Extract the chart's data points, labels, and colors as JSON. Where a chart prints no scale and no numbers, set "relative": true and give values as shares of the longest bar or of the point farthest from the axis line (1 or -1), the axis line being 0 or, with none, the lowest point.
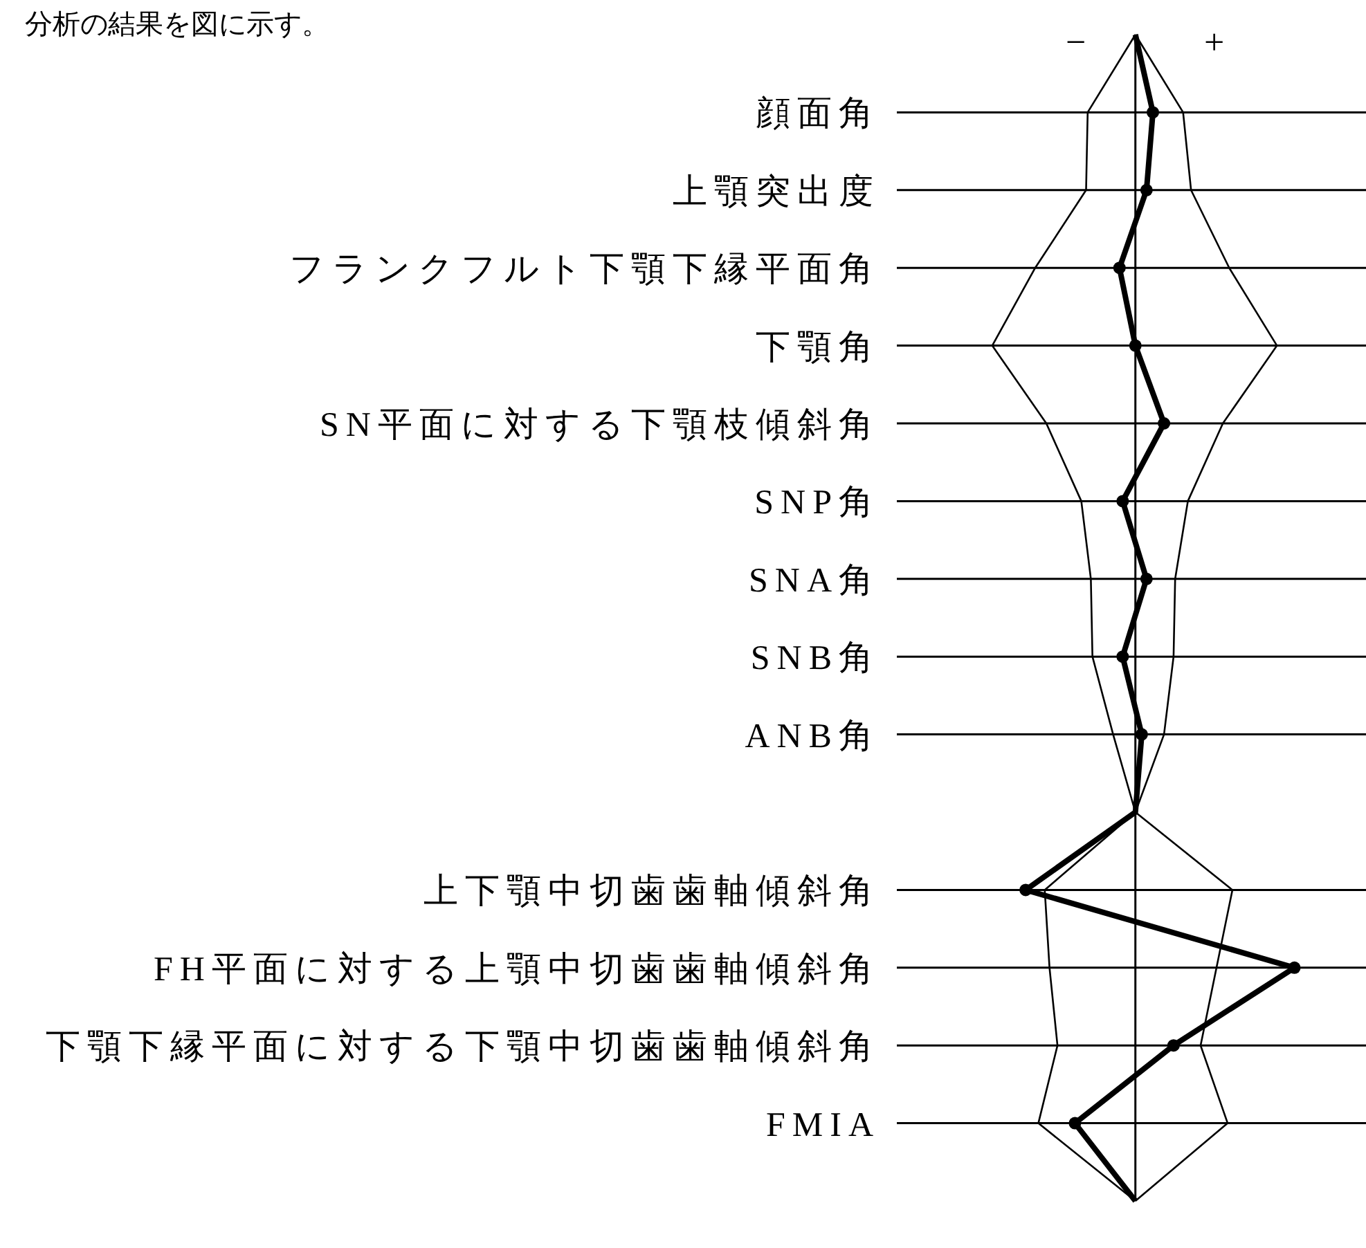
{
  "chart_data": {
    "type": "line",
    "orientation": "horizontal",
    "relative": true,
    "grid": "y",
    "legend": false,
    "annotations": [
      "分析の結果を図に示す。",
      "−",
      "+"
    ],
    "categories": [
      null,
      "顔面角",
      "上顎突出度",
      "フランクフルト下顎下縁平面角",
      "下顎角",
      "SN平面に対する下顎枝傾斜角",
      "SNP角",
      "SNA角",
      "SNB角",
      "ANB角",
      null,
      "上下顎中切歯歯軸傾斜角",
      "FH平面に対する上顎中切歯歯軸傾斜角",
      "下顎下縁平面に対する下顎中切歯歯軸傾斜角",
      "FMIA",
      null
    ],
    "series": [
      {
        "color": "#000000",
        "marker": "none",
        "values": [
          0,
          -0.3,
          -0.31,
          -0.63,
          -0.9,
          -0.56,
          -0.34,
          -0.28,
          -0.27,
          -0.14,
          0,
          -0.57,
          -0.54,
          -0.49,
          -0.61,
          0
        ]
      },
      {
        "color": "#000000",
        "marker": "none",
        "values": [
          0,
          0.3,
          0.35,
          0.59,
          0.89,
          0.55,
          0.33,
          0.25,
          0.24,
          0.18,
          0,
          0.61,
          0.51,
          0.41,
          0.58,
          0
        ]
      },
      {
        "color": "#000000",
        "marker": "circle",
        "values": [
          0,
          0.11,
          0.07,
          -0.1,
          0,
          0.18,
          -0.08,
          0.07,
          -0.08,
          0.04,
          0,
          -0.69,
          1,
          0.24,
          -0.38,
          0
        ]
      }
    ]
  }
}
